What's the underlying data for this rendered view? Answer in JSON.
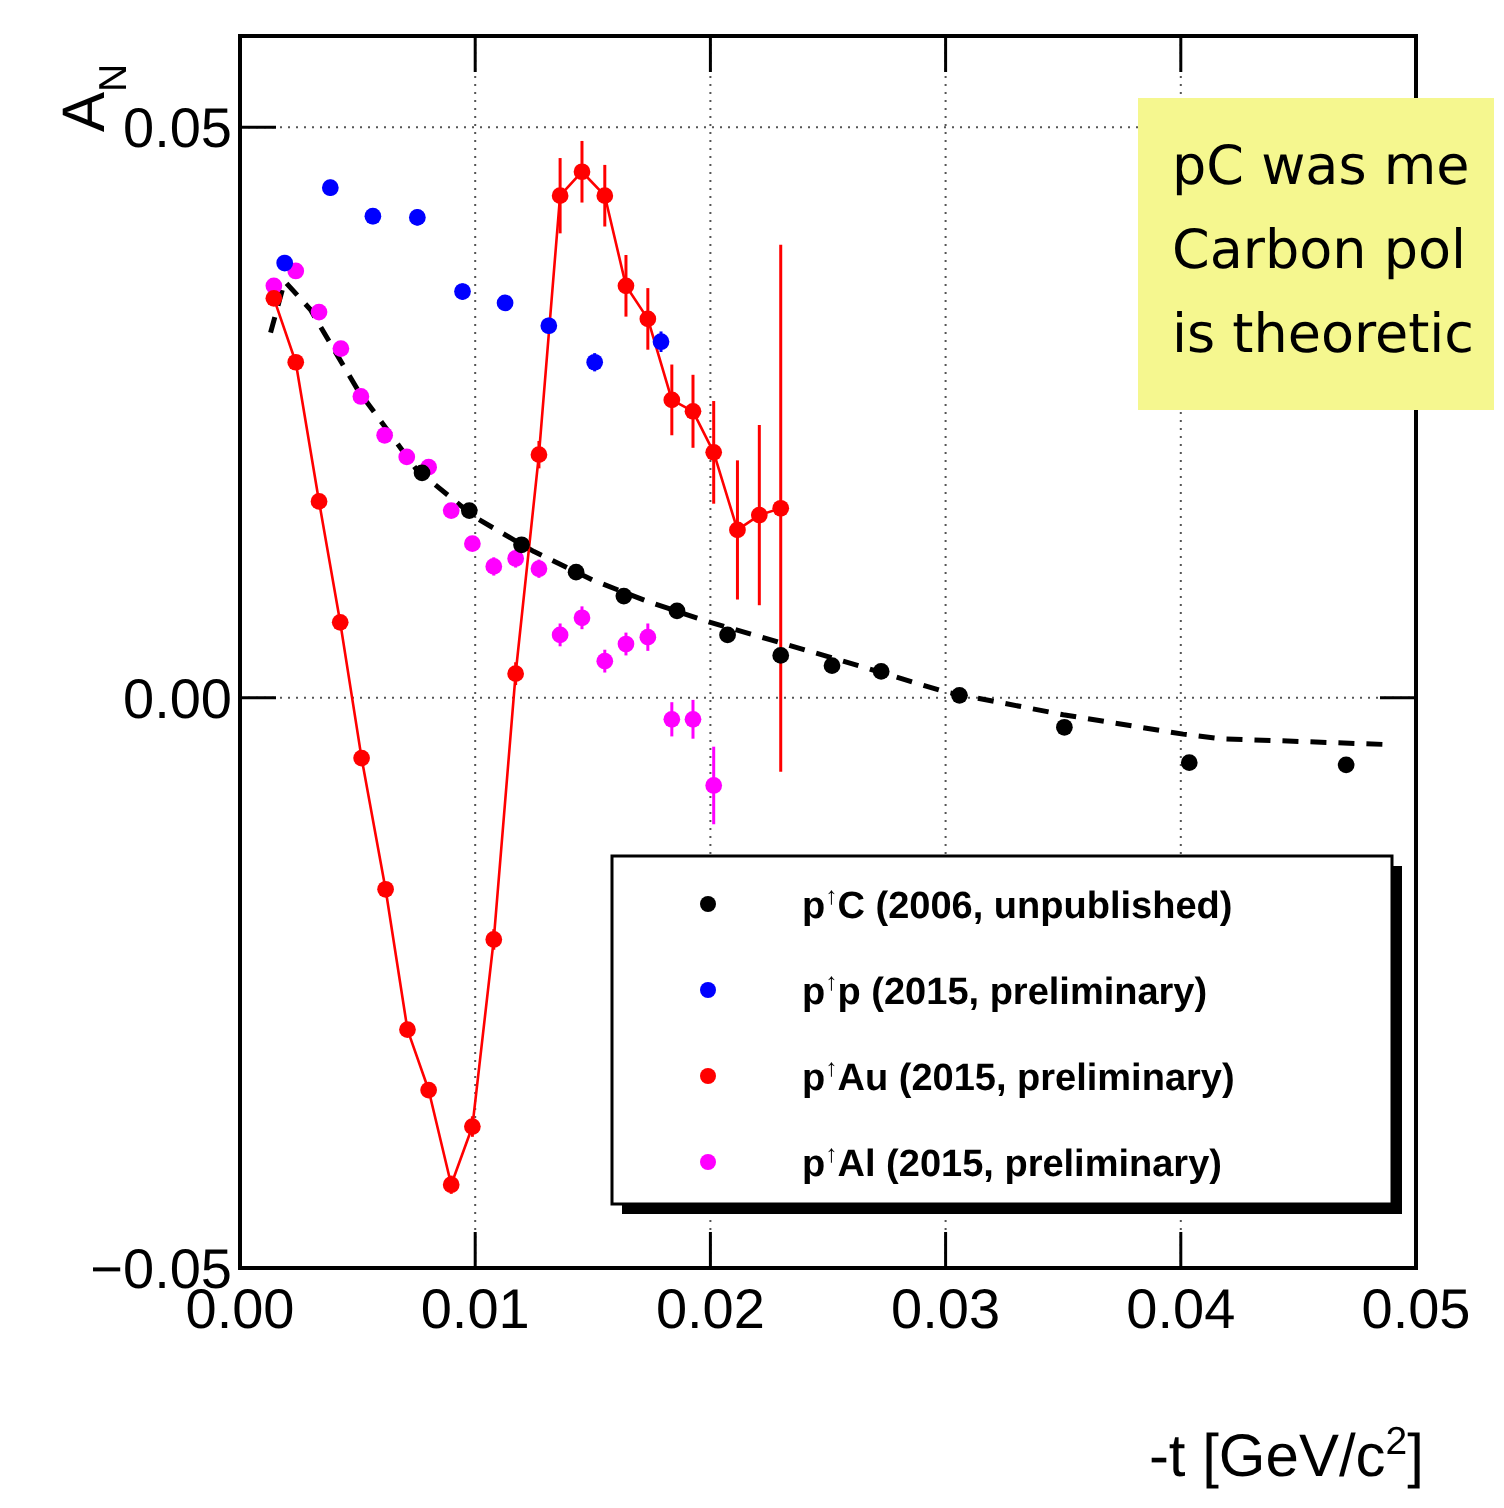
{
  "chart_data": {
    "type": "scatter",
    "xlabel": "-t  [GeV/c$^{2}$]",
    "ylabel": "A$_{N}$",
    "xlim": [
      0,
      0.05
    ],
    "ylim": [
      -0.05,
      0.058
    ],
    "xticks": [
      {
        "value": 0,
        "label": "0.00"
      },
      {
        "value": 0.01,
        "label": "0.01"
      },
      {
        "value": 0.02,
        "label": "0.02"
      },
      {
        "value": 0.03,
        "label": "0.03"
      },
      {
        "value": 0.04,
        "label": "0.04"
      },
      {
        "value": 0.05,
        "label": "0.05"
      }
    ],
    "yticks": [
      {
        "value": -0.05,
        "label": "−0.05"
      },
      {
        "value": 0,
        "label": "0.00"
      },
      {
        "value": 0.05,
        "label": "0.05"
      }
    ],
    "grid": true,
    "legend": "bottom right",
    "marker": "circle",
    "annotations": [
      "pC was me",
      "Carbon pol",
      "is theoretic"
    ],
    "series": [
      {
        "name": "p$^{↑}$C   (2006, unpublished)",
        "color": "#000000",
        "x": [
          0.00774,
          0.00975,
          0.01197,
          0.01429,
          0.01632,
          0.01858,
          0.02073,
          0.02299,
          0.02517,
          0.02726,
          0.03059,
          0.03505,
          0.04036,
          0.04703
        ],
        "values": [
          0.0197,
          0.0164,
          0.0134,
          0.011,
          0.0089,
          0.0076,
          0.0055,
          0.0037,
          0.0028,
          0.0023,
          0.0002,
          -0.0026,
          -0.0057,
          -0.0059
        ]
      },
      {
        "name": "p$^{↑}$p   (2015, preliminary)",
        "color": "#0000ff",
        "x": [
          0.0019,
          0.00384,
          0.00565,
          0.00754,
          0.00946,
          0.01127,
          0.01313,
          0.01508,
          0.0179
        ],
        "values": [
          0.0381,
          0.0447,
          0.0422,
          0.0421,
          0.0356,
          0.0346,
          0.0326,
          0.0294,
          0.0312
        ],
        "errors": [
          0.0007,
          0.0007,
          0.0007,
          0.0007,
          0.0007,
          0.0007,
          0.0007,
          0.0008,
          0.0009
        ]
      },
      {
        "name": "p$^{↑}$Au (2015, preliminary)",
        "color": "#ff0000",
        "type": "line",
        "marker": "circle",
        "x": [
          0.00144,
          0.00237,
          0.00336,
          0.00426,
          0.00517,
          0.00619,
          0.00712,
          0.00802,
          0.00898,
          0.00988,
          0.01079,
          0.01172,
          0.01271,
          0.01361,
          0.01454,
          0.01551,
          0.01641,
          0.01734,
          0.01836,
          0.01926,
          0.02014,
          0.02115,
          0.02208,
          0.02299
        ],
        "values": [
          0.035,
          0.0294,
          0.0172,
          0.0066,
          -0.0053,
          -0.0168,
          -0.0291,
          -0.0344,
          -0.0427,
          -0.0376,
          -0.0212,
          0.0021,
          0.0213,
          0.044,
          0.0461,
          0.044,
          0.0361,
          0.0332,
          0.0261,
          0.0251,
          0.0215,
          0.0147,
          0.016,
          0.0166
        ],
        "errors": [
          0.0006,
          0.0005,
          0.0005,
          0.0005,
          0.0005,
          0.0005,
          0.0005,
          0.0005,
          0.0008,
          0.0009,
          0.0009,
          0.001,
          0.0012,
          0.0033,
          0.0027,
          0.0027,
          0.0027,
          0.0027,
          0.0031,
          0.0032,
          0.0045,
          0.0061,
          0.0079,
          0.0231
        ]
      },
      {
        "name": "p$^{↑}$Al  (2015, preliminary)",
        "color": "#ff00ff",
        "x": [
          0.00144,
          0.00237,
          0.00336,
          0.00429,
          0.00514,
          0.00615,
          0.00709,
          0.00802,
          0.00898,
          0.00988,
          0.01079,
          0.01172,
          0.01271,
          0.01361,
          0.01454,
          0.01551,
          0.01641,
          0.01734,
          0.01836,
          0.01926,
          0.02014
        ],
        "values": [
          0.0361,
          0.0374,
          0.0338,
          0.0306,
          0.0264,
          0.023,
          0.0211,
          0.0202,
          0.0164,
          0.0135,
          0.0115,
          0.0122,
          0.0113,
          0.0055,
          0.007,
          0.0032,
          0.0047,
          0.0053,
          -0.0019,
          -0.0019,
          -0.0077
        ],
        "errors": [
          0.0005,
          0.0005,
          0.0005,
          0.0005,
          0.0005,
          0.0005,
          0.0005,
          0.0005,
          0.0005,
          0.0006,
          0.0008,
          0.0008,
          0.0008,
          0.001,
          0.001,
          0.001,
          0.001,
          0.0012,
          0.0015,
          0.0017,
          0.0034
        ]
      },
      {
        "type": "line",
        "color": "#000000",
        "marker": "none",
        "line_style": "dashed",
        "x": [
          0.0013,
          0.0019,
          0.003,
          0.005,
          0.0075,
          0.01,
          0.0125,
          0.015,
          0.0175,
          0.02,
          0.025,
          0.03,
          0.035,
          0.0401,
          0.0417,
          0.0486
        ],
        "values": [
          0.032,
          0.0365,
          0.034,
          0.027,
          0.02,
          0.0158,
          0.0128,
          0.0103,
          0.0083,
          0.0066,
          0.0036,
          0.0005,
          -0.0015,
          -0.0032,
          -0.0036,
          -0.0041
        ]
      }
    ]
  }
}
